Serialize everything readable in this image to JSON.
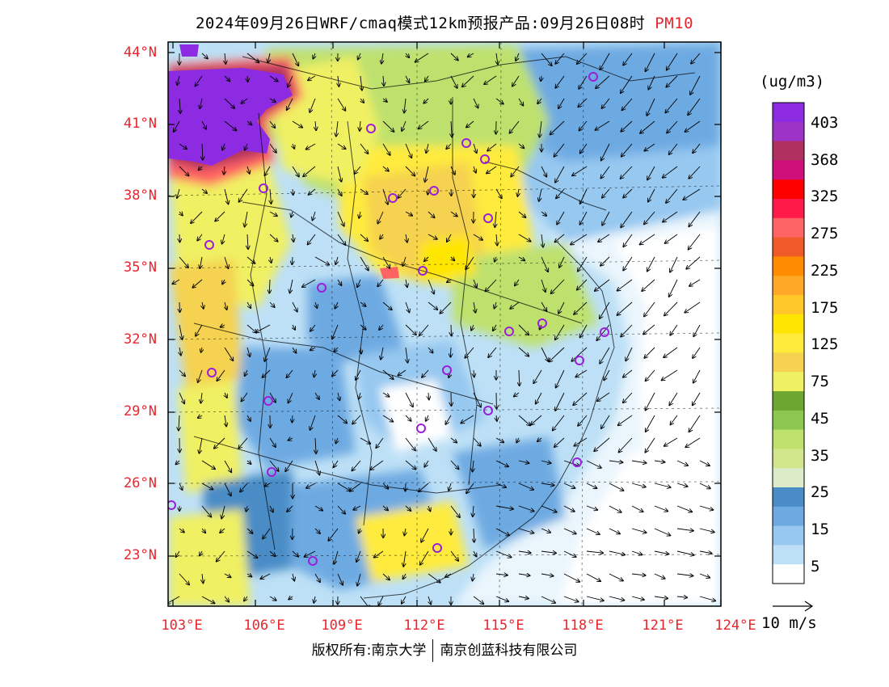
{
  "title": {
    "main": "2024年09月26日WRF/cmaq模式12km预报产品:09月26日08时",
    "pollutant": "PM10"
  },
  "lat_labels": [
    "44°N",
    "41°N",
    "38°N",
    "35°N",
    "32°N",
    "29°N",
    "26°N",
    "23°N"
  ],
  "lon_labels": [
    "103°E",
    "106°E",
    "109°E",
    "112°E",
    "115°E",
    "118°E",
    "121°E",
    "124°E"
  ],
  "colorbar": {
    "unit": "(ug/m3)",
    "labels": [
      "403",
      "368",
      "325",
      "275",
      "225",
      "175",
      "125",
      "75",
      "45",
      "35",
      "25",
      "15",
      "5"
    ],
    "colors": [
      "#8c2be2",
      "#9e33c8",
      "#b03060",
      "#d0107a",
      "#ff0000",
      "#ff1a4a",
      "#ff6464",
      "#f05a28",
      "#ff8c00",
      "#ffa828",
      "#ffc828",
      "#ffe600",
      "#ffeb3c",
      "#f5d250",
      "#f0f064",
      "#6ea632",
      "#8cc850",
      "#bee16e",
      "#d2e68c",
      "#dcebc8",
      "#4a8cc6",
      "#6eaae2",
      "#96c8f0",
      "#bde0f6",
      "#ffffff"
    ]
  },
  "wind_reference": {
    "label": "10 m/s"
  },
  "cities": 24,
  "copyright": {
    "left": "版权所有:南京大学",
    "right": "南京创蓝科技有限公司"
  }
}
